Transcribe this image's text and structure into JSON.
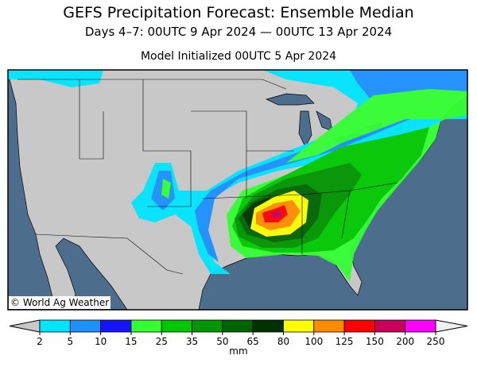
{
  "header": {
    "title": "GEFS Precipitation Forecast: Ensemble Median",
    "subtitle": "Days 4–7: 00UTC 9 Apr 2024 — 00UTC 13 Apr 2024",
    "initialized": "Model Initialized 00UTC 5 Apr 2024"
  },
  "map": {
    "credit": "© World Ag Weather"
  },
  "legend": {
    "ticks": [
      2,
      5,
      10,
      15,
      25,
      35,
      50,
      65,
      80,
      100,
      125,
      150,
      200,
      250
    ],
    "colors": [
      "#00e5ff",
      "#1e90ff",
      "#1414ff",
      "#33ff33",
      "#00c800",
      "#009600",
      "#006400",
      "#003200",
      "#ffff00",
      "#ff8c00",
      "#ff0000",
      "#c8005a",
      "#ff00ff",
      "#a050e6"
    ],
    "unit": "mm"
  }
}
